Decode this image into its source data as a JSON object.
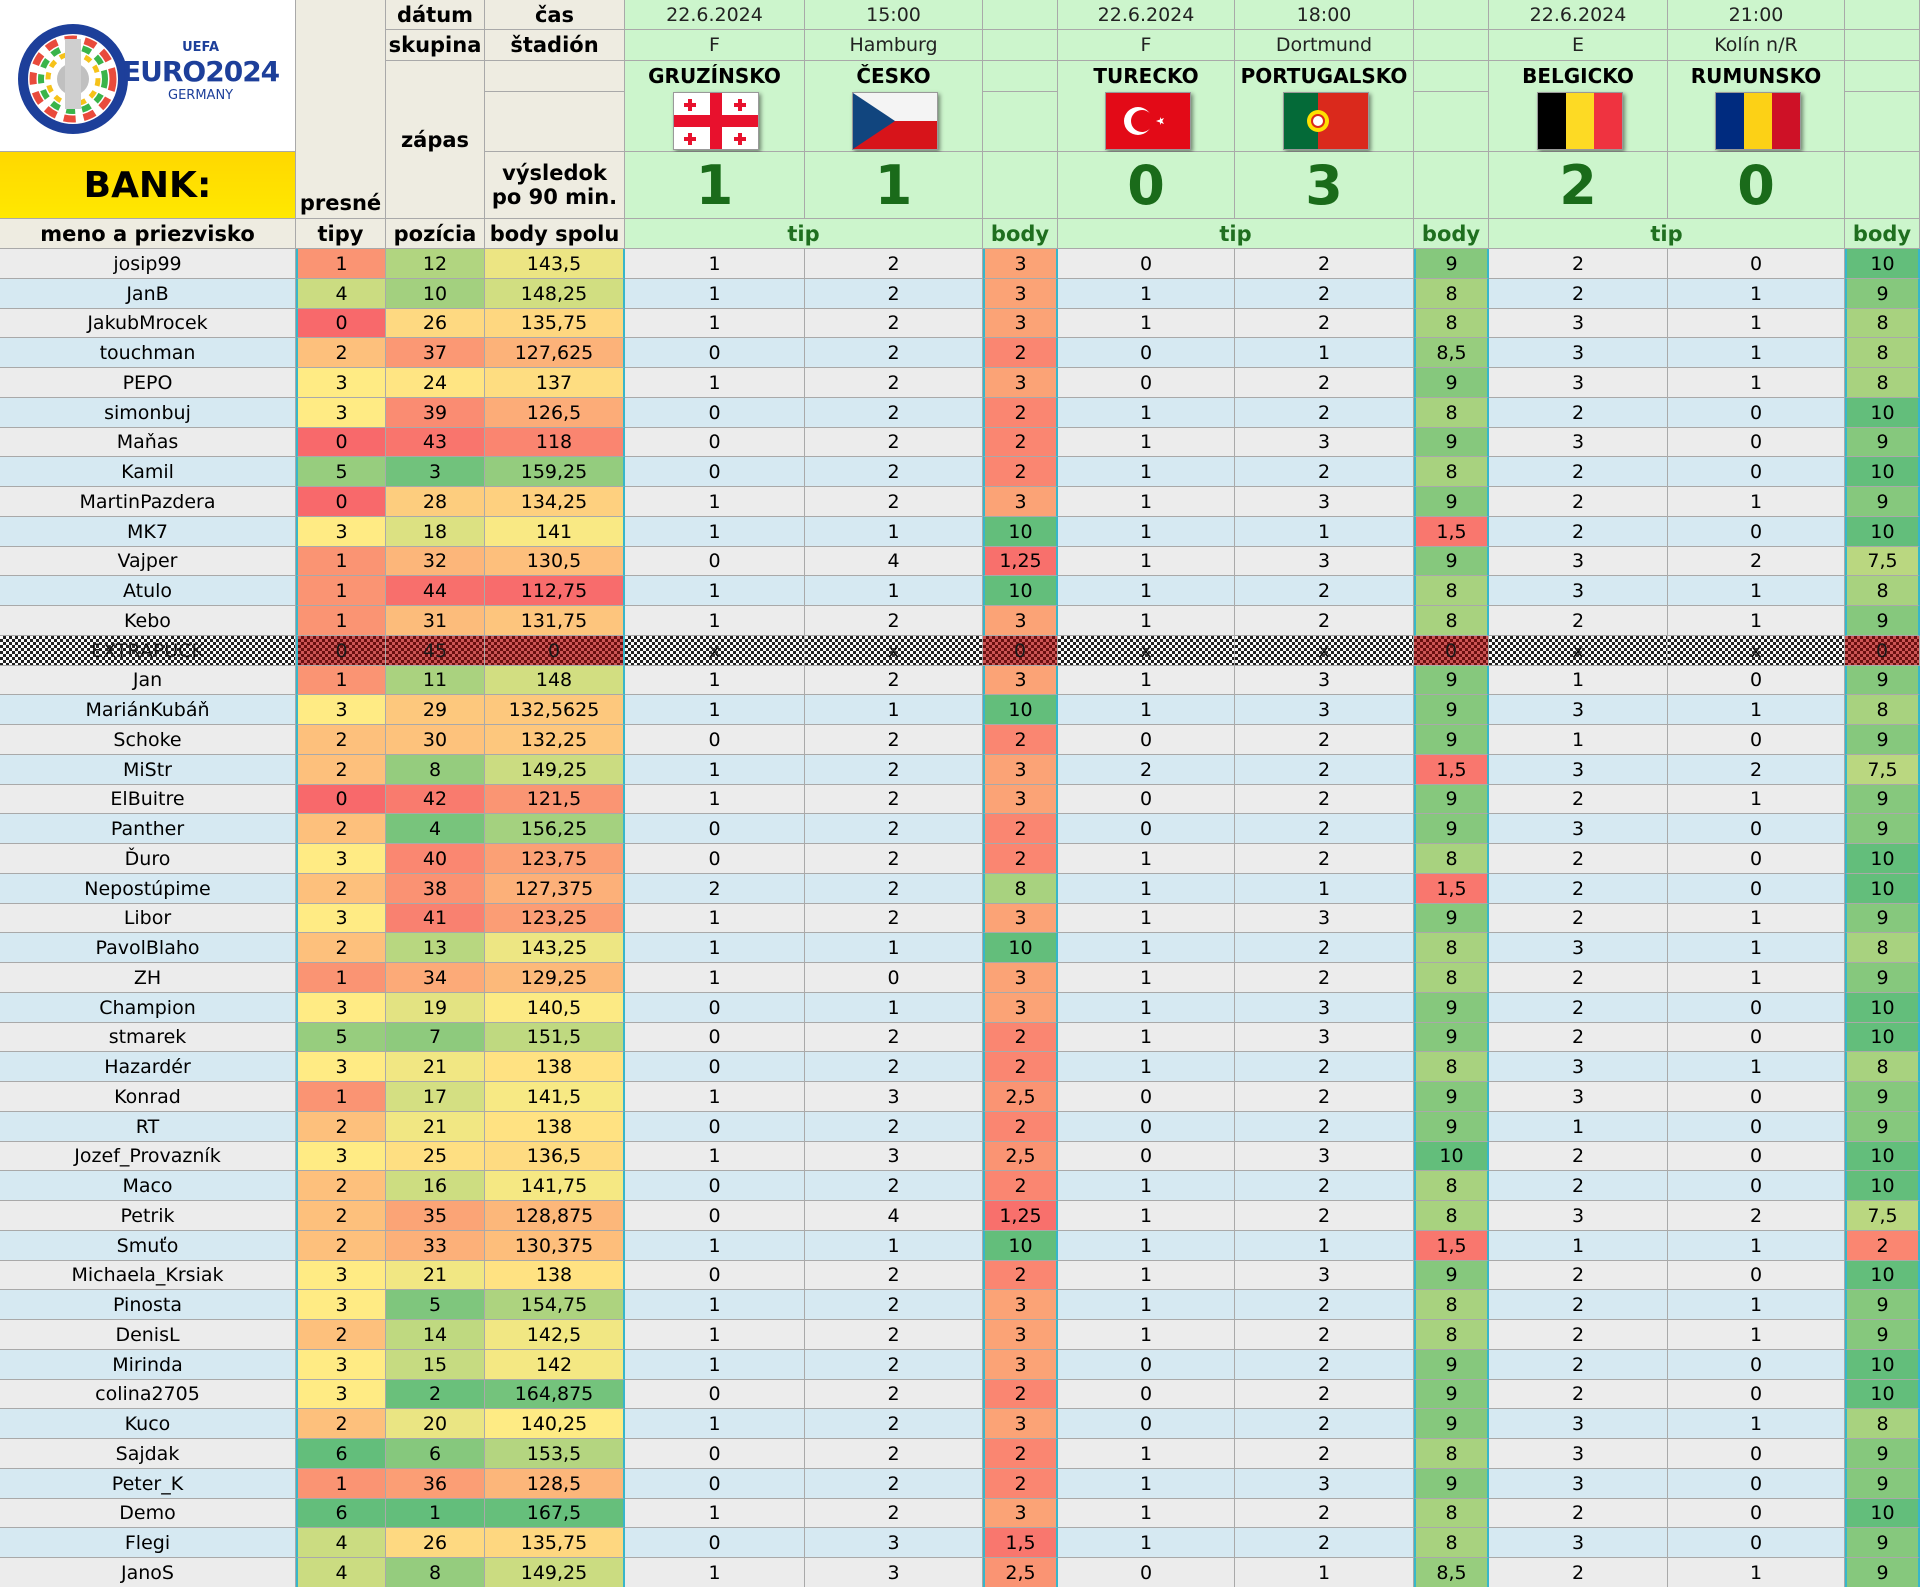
{
  "logo": {
    "brand": "EURO2024",
    "sub": "GERMANY",
    "uefa": "UEFA"
  },
  "bank_label": "BANK:",
  "headers": {
    "datum": "dátum",
    "cas": "čas",
    "skupina": "skupina",
    "stadion": "štadión",
    "zapas": "zápas",
    "vysledok_1": "výsledok",
    "vysledok_2": "po 90 min.",
    "presne_1": "presné",
    "presne_2": "tipy",
    "meno": "meno a priezvisko",
    "pozicia": "pozícia",
    "body_spolu": "body spolu"
  },
  "matches": [
    {
      "date": "22.6.2024",
      "time": "15:00",
      "group": "F",
      "stadium": "Hamburg",
      "home": "GRUZÍNSKO",
      "away": "ČESKO",
      "home_goals": "1",
      "away_goals": "1",
      "home_flag": "georgia-flag",
      "away_flag": "czech-flag",
      "tip_label": "tip",
      "body_label": "body"
    },
    {
      "date": "22.6.2024",
      "time": "18:00",
      "group": "F",
      "stadium": "Dortmund",
      "home": "TURECKO",
      "away": "PORTUGALSKO",
      "home_goals": "0",
      "away_goals": "3",
      "home_flag": "turkey-flag",
      "away_flag": "portugal-flag",
      "tip_label": "tip",
      "body_label": "body"
    },
    {
      "date": "22.6.2024",
      "time": "21:00",
      "group": "E",
      "stadium": "Kolín n/R",
      "home": "BELGICKO",
      "away": "RUMUNSKO",
      "home_goals": "2",
      "away_goals": "0",
      "home_flag": "belgium-flag",
      "away_flag": "romania-flag",
      "tip_label": "tip",
      "body_label": "body"
    }
  ],
  "colors": {
    "scale_low": "#f8696b",
    "scale_mid": "#ffeb84",
    "scale_high": "#63be7b",
    "accent_header": "#ccf5cc",
    "bank": "#ffd800",
    "score": "#1a6b1a"
  },
  "players": [
    [
      "josip99",
      "1",
      "12",
      "143,5",
      "1",
      "2",
      "3",
      "0",
      "2",
      "9",
      "2",
      "0",
      "10"
    ],
    [
      "JanB",
      "4",
      "10",
      "148,25",
      "1",
      "2",
      "3",
      "1",
      "2",
      "8",
      "2",
      "1",
      "9"
    ],
    [
      "JakubMrocek",
      "0",
      "26",
      "135,75",
      "1",
      "2",
      "3",
      "1",
      "2",
      "8",
      "3",
      "1",
      "8"
    ],
    [
      "touchman",
      "2",
      "37",
      "127,625",
      "0",
      "2",
      "2",
      "0",
      "1",
      "8,5",
      "3",
      "1",
      "8"
    ],
    [
      "PEPO",
      "3",
      "24",
      "137",
      "1",
      "2",
      "3",
      "0",
      "2",
      "9",
      "3",
      "1",
      "8"
    ],
    [
      "simonbuj",
      "3",
      "39",
      "126,5",
      "0",
      "2",
      "2",
      "1",
      "2",
      "8",
      "2",
      "0",
      "10"
    ],
    [
      "Maňas",
      "0",
      "43",
      "118",
      "0",
      "2",
      "2",
      "1",
      "3",
      "9",
      "3",
      "0",
      "9"
    ],
    [
      "Kamil",
      "5",
      "3",
      "159,25",
      "0",
      "2",
      "2",
      "1",
      "2",
      "8",
      "2",
      "0",
      "10"
    ],
    [
      "MartinPazdera",
      "0",
      "28",
      "134,25",
      "1",
      "2",
      "3",
      "1",
      "3",
      "9",
      "2",
      "1",
      "9"
    ],
    [
      "MK7",
      "3",
      "18",
      "141",
      "1",
      "1",
      "10",
      "1",
      "1",
      "1,5",
      "2",
      "0",
      "10"
    ],
    [
      "Vajper",
      "1",
      "32",
      "130,5",
      "0",
      "4",
      "1,25",
      "1",
      "3",
      "9",
      "3",
      "2",
      "7,5"
    ],
    [
      "Atulo",
      "1",
      "44",
      "112,75",
      "1",
      "1",
      "10",
      "1",
      "2",
      "8",
      "3",
      "1",
      "8"
    ],
    [
      "Kebo",
      "1",
      "31",
      "131,75",
      "1",
      "2",
      "3",
      "1",
      "2",
      "8",
      "2",
      "1",
      "9"
    ],
    [
      "EXTRAPUCK",
      "0",
      "45",
      "0",
      "x",
      "x",
      "0",
      "x",
      "x",
      "0",
      "x",
      "x",
      "0"
    ],
    [
      "Jan",
      "1",
      "11",
      "148",
      "1",
      "2",
      "3",
      "1",
      "3",
      "9",
      "1",
      "0",
      "9"
    ],
    [
      "MariánKubáň",
      "3",
      "29",
      "132,5625",
      "1",
      "1",
      "10",
      "1",
      "3",
      "9",
      "3",
      "1",
      "8"
    ],
    [
      "Schoke",
      "2",
      "30",
      "132,25",
      "0",
      "2",
      "2",
      "0",
      "2",
      "9",
      "1",
      "0",
      "9"
    ],
    [
      "MiStr",
      "2",
      "8",
      "149,25",
      "1",
      "2",
      "3",
      "2",
      "2",
      "1,5",
      "3",
      "2",
      "7,5"
    ],
    [
      "ElBuitre",
      "0",
      "42",
      "121,5",
      "1",
      "2",
      "3",
      "0",
      "2",
      "9",
      "2",
      "1",
      "9"
    ],
    [
      "Panther",
      "2",
      "4",
      "156,25",
      "0",
      "2",
      "2",
      "0",
      "2",
      "9",
      "3",
      "0",
      "9"
    ],
    [
      "Ďuro",
      "3",
      "40",
      "123,75",
      "0",
      "2",
      "2",
      "1",
      "2",
      "8",
      "2",
      "0",
      "10"
    ],
    [
      "Nepostúpime",
      "2",
      "38",
      "127,375",
      "2",
      "2",
      "8",
      "1",
      "1",
      "1,5",
      "2",
      "0",
      "10"
    ],
    [
      "Libor",
      "3",
      "41",
      "123,25",
      "1",
      "2",
      "3",
      "1",
      "3",
      "9",
      "2",
      "1",
      "9"
    ],
    [
      "PavolBlaho",
      "2",
      "13",
      "143,25",
      "1",
      "1",
      "10",
      "1",
      "2",
      "8",
      "3",
      "1",
      "8"
    ],
    [
      "ZH",
      "1",
      "34",
      "129,25",
      "1",
      "0",
      "3",
      "1",
      "2",
      "8",
      "2",
      "1",
      "9"
    ],
    [
      "Champion",
      "3",
      "19",
      "140,5",
      "0",
      "1",
      "3",
      "1",
      "3",
      "9",
      "2",
      "0",
      "10"
    ],
    [
      "stmarek",
      "5",
      "7",
      "151,5",
      "0",
      "2",
      "2",
      "1",
      "3",
      "9",
      "2",
      "0",
      "10"
    ],
    [
      "Hazardér",
      "3",
      "21",
      "138",
      "0",
      "2",
      "2",
      "1",
      "2",
      "8",
      "3",
      "1",
      "8"
    ],
    [
      "Konrad",
      "1",
      "17",
      "141,5",
      "1",
      "3",
      "2,5",
      "0",
      "2",
      "9",
      "3",
      "0",
      "9"
    ],
    [
      "RT",
      "2",
      "21",
      "138",
      "0",
      "2",
      "2",
      "0",
      "2",
      "9",
      "1",
      "0",
      "9"
    ],
    [
      "Jozef_Provazník",
      "3",
      "25",
      "136,5",
      "1",
      "3",
      "2,5",
      "0",
      "3",
      "10",
      "2",
      "0",
      "10"
    ],
    [
      "Maco",
      "2",
      "16",
      "141,75",
      "0",
      "2",
      "2",
      "1",
      "2",
      "8",
      "2",
      "0",
      "10"
    ],
    [
      "Petrik",
      "2",
      "35",
      "128,875",
      "0",
      "4",
      "1,25",
      "1",
      "2",
      "8",
      "3",
      "2",
      "7,5"
    ],
    [
      "Smuťo",
      "2",
      "33",
      "130,375",
      "1",
      "1",
      "10",
      "1",
      "1",
      "1,5",
      "1",
      "1",
      "2"
    ],
    [
      "Michaela_Krsiak",
      "3",
      "21",
      "138",
      "0",
      "2",
      "2",
      "1",
      "3",
      "9",
      "2",
      "0",
      "10"
    ],
    [
      "Pinosta",
      "3",
      "5",
      "154,75",
      "1",
      "2",
      "3",
      "1",
      "2",
      "8",
      "2",
      "1",
      "9"
    ],
    [
      "DenisL",
      "2",
      "14",
      "142,5",
      "1",
      "2",
      "3",
      "1",
      "2",
      "8",
      "2",
      "1",
      "9"
    ],
    [
      "Mirinda",
      "3",
      "15",
      "142",
      "1",
      "2",
      "3",
      "0",
      "2",
      "9",
      "2",
      "0",
      "10"
    ],
    [
      "colina2705",
      "3",
      "2",
      "164,875",
      "0",
      "2",
      "2",
      "0",
      "2",
      "9",
      "2",
      "0",
      "10"
    ],
    [
      "Kuco",
      "2",
      "20",
      "140,25",
      "1",
      "2",
      "3",
      "0",
      "2",
      "9",
      "3",
      "1",
      "8"
    ],
    [
      "Sajdak",
      "6",
      "6",
      "153,5",
      "0",
      "2",
      "2",
      "1",
      "2",
      "8",
      "3",
      "0",
      "9"
    ],
    [
      "Peter_K",
      "1",
      "36",
      "128,5",
      "0",
      "2",
      "2",
      "1",
      "3",
      "9",
      "3",
      "0",
      "9"
    ],
    [
      "Demo",
      "6",
      "1",
      "167,5",
      "1",
      "2",
      "3",
      "1",
      "2",
      "8",
      "2",
      "0",
      "10"
    ],
    [
      "Flegi",
      "4",
      "26",
      "135,75",
      "0",
      "3",
      "1,5",
      "1",
      "2",
      "8",
      "3",
      "0",
      "9"
    ],
    [
      "JanoS",
      "4",
      "8",
      "149,25",
      "1",
      "3",
      "2,5",
      "0",
      "1",
      "8,5",
      "2",
      "1",
      "9"
    ]
  ]
}
